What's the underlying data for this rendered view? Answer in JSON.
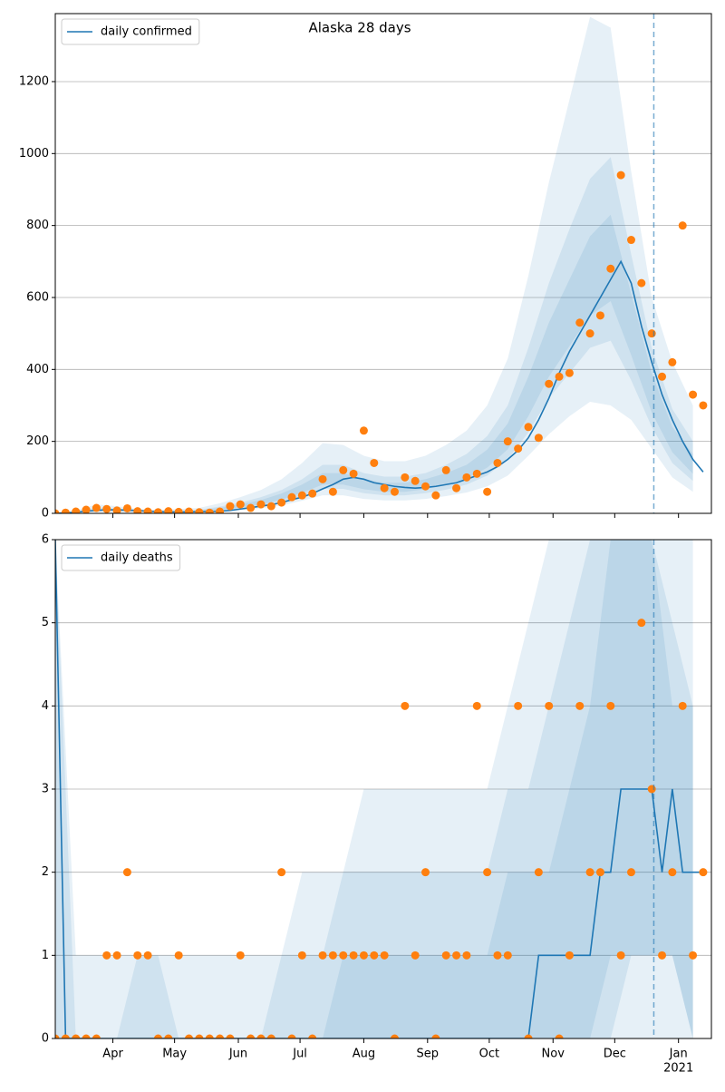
{
  "chart_data": [
    {
      "type": "line",
      "title": "Alaska 28 days",
      "xlim": [
        0,
        319
      ],
      "ylim": [
        0,
        1389
      ],
      "yticks": [
        0,
        200,
        400,
        600,
        800,
        1000,
        1200
      ],
      "grid": true,
      "legend": "upper left",
      "xticks": [
        28,
        58,
        89,
        119,
        150,
        181,
        211,
        242,
        272,
        303
      ],
      "vline": 291,
      "x": [
        0,
        5,
        10,
        15,
        20,
        25,
        30,
        35,
        40,
        45,
        50,
        55,
        60,
        65,
        70,
        75,
        80,
        85,
        90,
        95,
        100,
        105,
        110,
        115,
        120,
        125,
        130,
        135,
        140,
        145,
        150,
        155,
        160,
        165,
        170,
        175,
        180,
        185,
        190,
        195,
        200,
        205,
        210,
        215,
        220,
        225,
        230,
        235,
        240,
        245,
        250,
        255,
        260,
        265,
        270,
        275,
        280,
        285,
        290,
        295,
        300,
        305,
        310,
        315
      ],
      "series": [
        {
          "name": "daily confirmed",
          "color": "#1f77b4",
          "style": "line",
          "values": [
            0,
            1,
            3,
            6,
            8,
            10,
            10,
            9,
            8,
            6,
            5,
            4,
            4,
            4,
            5,
            5,
            6,
            8,
            12,
            16,
            20,
            24,
            30,
            38,
            45,
            55,
            68,
            80,
            95,
            100,
            95,
            85,
            80,
            75,
            72,
            70,
            72,
            75,
            80,
            85,
            95,
            105,
            115,
            130,
            150,
            175,
            210,
            260,
            320,
            390,
            450,
            500,
            550,
            600,
            650,
            700,
            640,
            520,
            420,
            330,
            260,
            200,
            150,
            115
          ]
        },
        {
          "color": "#ff7f0e",
          "style": "scatter",
          "values": [
            0,
            2,
            5,
            10,
            15,
            12,
            8,
            14,
            6,
            5,
            3,
            6,
            4,
            5,
            3,
            2,
            5,
            20,
            25,
            15,
            25,
            20,
            30,
            45,
            50,
            55,
            95,
            60,
            120,
            110,
            230,
            140,
            70,
            60,
            100,
            90,
            75,
            50,
            120,
            70,
            100,
            110,
            60,
            140,
            200,
            180,
            240,
            210,
            360,
            380,
            390,
            530,
            500,
            550,
            680,
            940,
            760,
            640,
            500,
            380,
            420,
            800,
            330,
            300
          ]
        }
      ],
      "bands": {
        "color": "#1f77b4",
        "x": [
          0,
          10,
          20,
          30,
          40,
          50,
          60,
          70,
          80,
          90,
          100,
          110,
          120,
          130,
          140,
          150,
          160,
          170,
          180,
          190,
          200,
          210,
          220,
          230,
          240,
          250,
          260,
          270,
          280,
          290,
          300,
          310
        ],
        "levels": [
          {
            "lower": [
              0,
              1,
              4,
              3,
              2,
              1,
              2,
              2,
              5,
              9,
              14,
              22,
              35,
              50,
              50,
              40,
              36,
              36,
              40,
              48,
              58,
              75,
              105,
              160,
              220,
              270,
              310,
              300,
              260,
              180,
              100,
              60
            ],
            "upper": [
              2,
              8,
              25,
              20,
              12,
              10,
              12,
              15,
              28,
              45,
              65,
              95,
              140,
              195,
              190,
              160,
              145,
              145,
              160,
              190,
              230,
              300,
              430,
              660,
              920,
              1150,
              1380,
              1350,
              950,
              600,
              420,
              300
            ]
          },
          {
            "lower": [
              0,
              2,
              6,
              5,
              3,
              2,
              3,
              3,
              8,
              13,
              20,
              32,
              48,
              68,
              68,
              56,
              50,
              50,
              56,
              66,
              80,
              105,
              150,
              225,
              320,
              390,
              460,
              480,
              370,
              240,
              140,
              90
            ],
            "upper": [
              1,
              5,
              16,
              13,
              8,
              7,
              8,
              10,
              19,
              30,
              45,
              65,
              95,
              135,
              135,
              112,
              102,
              102,
              112,
              135,
              165,
              215,
              300,
              460,
              640,
              790,
              930,
              990,
              720,
              460,
              290,
              200
            ]
          },
          {
            "lower": [
              0,
              2,
              8,
              6,
              4,
              3,
              4,
              5,
              10,
              16,
              25,
              38,
              57,
              80,
              80,
              67,
              60,
              60,
              67,
              80,
              97,
              127,
              178,
              270,
              380,
              465,
              550,
              590,
              440,
              280,
              170,
              110
            ],
            "upper": [
              1,
              4,
              13,
              10,
              6,
              5,
              6,
              8,
              15,
              25,
              37,
              55,
              80,
              112,
              112,
              95,
              85,
              85,
              95,
              112,
              135,
              177,
              250,
              380,
              530,
              650,
              770,
              830,
              610,
              390,
              240,
              165
            ]
          }
        ]
      }
    },
    {
      "type": "line",
      "xlim": [
        0,
        319
      ],
      "ylim": [
        0,
        6
      ],
      "yticks": [
        0,
        1,
        2,
        3,
        4,
        5,
        6
      ],
      "grid": true,
      "legend": "upper left",
      "xticks": [
        {
          "value": 28,
          "label": "Apr"
        },
        {
          "value": 58,
          "label": "May"
        },
        {
          "value": 89,
          "label": "Jun"
        },
        {
          "value": 119,
          "label": "Jul"
        },
        {
          "value": 150,
          "label": "Aug"
        },
        {
          "value": 181,
          "label": "Sep"
        },
        {
          "value": 211,
          "label": "Oct"
        },
        {
          "value": 242,
          "label": "Nov"
        },
        {
          "value": 272,
          "label": "Dec"
        },
        {
          "value": 303,
          "label": "Jan"
        }
      ],
      "x_sublabel": "2021",
      "vline": 291,
      "x": [
        0,
        5,
        10,
        15,
        20,
        25,
        30,
        35,
        40,
        45,
        50,
        55,
        60,
        65,
        70,
        75,
        80,
        85,
        90,
        95,
        100,
        105,
        110,
        115,
        120,
        125,
        130,
        135,
        140,
        145,
        150,
        155,
        160,
        165,
        170,
        175,
        180,
        185,
        190,
        195,
        200,
        205,
        210,
        215,
        220,
        225,
        230,
        235,
        240,
        245,
        250,
        255,
        260,
        265,
        270,
        275,
        280,
        285,
        290,
        295,
        300,
        305,
        310,
        315
      ],
      "series": [
        {
          "name": "daily deaths",
          "color": "#1f77b4",
          "style": "line",
          "values": [
            6,
            0,
            0,
            0,
            0,
            0,
            0,
            0,
            0,
            0,
            0,
            0,
            0,
            0,
            0,
            0,
            0,
            0,
            0,
            0,
            0,
            0,
            0,
            0,
            0,
            0,
            0,
            0,
            0,
            0,
            0,
            0,
            0,
            0,
            0,
            0,
            0,
            0,
            0,
            0,
            0,
            0,
            0,
            0,
            0,
            0,
            0,
            1,
            1,
            1,
            1,
            1,
            1,
            2,
            2,
            3,
            3,
            3,
            3,
            2,
            3,
            2,
            2,
            2
          ]
        },
        {
          "color": "#ff7f0e",
          "style": "scatter",
          "values": [
            0,
            0,
            0,
            0,
            0,
            1,
            1,
            2,
            1,
            1,
            0,
            0,
            1,
            0,
            0,
            0,
            0,
            0,
            1,
            0,
            0,
            0,
            2,
            0,
            1,
            0,
            1,
            1,
            1,
            1,
            1,
            1,
            1,
            0,
            4,
            1,
            2,
            0,
            1,
            1,
            1,
            4,
            2,
            1,
            1,
            4,
            0,
            2,
            4,
            0,
            1,
            4,
            2,
            2,
            4,
            1,
            2,
            5,
            3,
            1,
            2,
            4,
            1,
            2
          ]
        }
      ],
      "bands": {
        "color": "#1f77b4",
        "x": [
          0,
          10,
          20,
          30,
          40,
          50,
          60,
          70,
          80,
          90,
          100,
          110,
          120,
          130,
          140,
          150,
          160,
          170,
          180,
          190,
          200,
          210,
          220,
          230,
          240,
          250,
          260,
          270,
          280,
          290,
          300,
          310
        ],
        "levels": [
          {
            "lower": [
              0,
              0,
              0,
              0,
              0,
              0,
              0,
              0,
              0,
              0,
              0,
              0,
              0,
              0,
              0,
              0,
              0,
              0,
              0,
              0,
              0,
              0,
              0,
              0,
              0,
              0,
              0,
              0,
              0,
              0,
              0,
              0
            ],
            "upper": [
              6,
              1,
              1,
              1,
              1,
              1,
              1,
              1,
              1,
              1,
              1,
              1,
              2,
              2,
              2,
              3,
              3,
              3,
              3,
              3,
              3,
              3,
              4,
              5,
              6,
              6,
              6,
              6,
              6,
              6,
              6,
              6
            ]
          },
          {
            "lower": [
              0,
              0,
              0,
              0,
              0,
              0,
              0,
              0,
              0,
              0,
              0,
              0,
              0,
              0,
              0,
              0,
              0,
              0,
              0,
              0,
              0,
              0,
              0,
              0,
              0,
              0,
              0,
              0,
              1,
              1,
              1,
              0
            ],
            "upper": [
              6,
              0,
              0,
              0,
              1,
              1,
              0,
              0,
              0,
              0,
              0,
              1,
              1,
              1,
              2,
              2,
              2,
              2,
              2,
              2,
              2,
              2,
              3,
              3,
              4,
              5,
              6,
              6,
              6,
              6,
              5,
              4
            ]
          },
          {
            "lower": [
              0,
              0,
              0,
              0,
              0,
              0,
              0,
              0,
              0,
              0,
              0,
              0,
              0,
              0,
              0,
              0,
              0,
              0,
              0,
              0,
              0,
              0,
              0,
              0,
              0,
              0,
              0,
              1,
              1,
              1,
              1,
              0
            ],
            "upper": [
              0,
              0,
              0,
              0,
              0,
              0,
              0,
              0,
              0,
              0,
              0,
              0,
              0,
              0,
              1,
              1,
              1,
              1,
              1,
              1,
              1,
              1,
              2,
              2,
              2,
              3,
              4,
              6,
              6,
              6,
              4,
              4
            ]
          }
        ]
      }
    }
  ]
}
